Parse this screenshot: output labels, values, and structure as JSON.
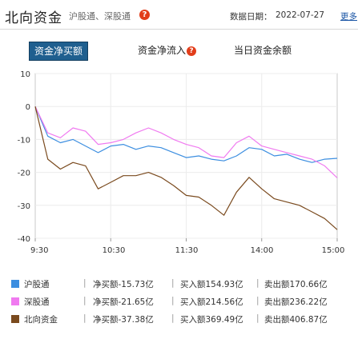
{
  "header": {
    "title": "北向资金",
    "subtitle": "沪股通、深股通",
    "date_label": "数据日期：",
    "date": "2022-07-27",
    "more": "更多"
  },
  "tabs": [
    {
      "label": "资金净买额",
      "active": true
    },
    {
      "label": "资金净流入",
      "active": false
    },
    {
      "label": "当日资金余额",
      "active": false
    }
  ],
  "colors": {
    "shanghai": "#3c8ee0",
    "shenzhen": "#f07af0",
    "northbound": "#7a4a1e",
    "tab_active": "#1f5f8f"
  },
  "chart_data": {
    "type": "line",
    "x_ticks": [
      "9:30",
      "10:30",
      "11:30",
      "14:00",
      "15:00"
    ],
    "y_ticks": [
      10,
      0,
      -10,
      -20,
      -30,
      -40
    ],
    "ylim": [
      -40,
      10
    ],
    "grid": true,
    "series": [
      {
        "name": "沪股通",
        "x": [
          "9:30",
          "9:40",
          "9:50",
          "10:00",
          "10:10",
          "10:20",
          "10:30",
          "10:40",
          "10:50",
          "11:00",
          "11:10",
          "11:20",
          "11:30",
          "13:10",
          "13:20",
          "13:30",
          "13:40",
          "13:50",
          "14:00",
          "14:10",
          "14:20",
          "14:30",
          "14:40",
          "14:50",
          "15:00"
        ],
        "values": [
          0,
          -9,
          -11,
          -10,
          -12,
          -14,
          -12,
          -11.5,
          -13,
          -12,
          -12.5,
          -14,
          -15.5,
          -15,
          -16,
          -16.5,
          -15,
          -12.5,
          -13,
          -15,
          -14.5,
          -16,
          -17,
          -16,
          -15.73
        ]
      },
      {
        "name": "深股通",
        "x": [
          "9:30",
          "9:40",
          "9:50",
          "10:00",
          "10:10",
          "10:20",
          "10:30",
          "10:40",
          "10:50",
          "11:00",
          "11:10",
          "11:20",
          "11:30",
          "13:10",
          "13:20",
          "13:30",
          "13:40",
          "13:50",
          "14:00",
          "14:10",
          "14:20",
          "14:30",
          "14:40",
          "14:50",
          "15:00"
        ],
        "values": [
          0,
          -8,
          -9.5,
          -6.5,
          -7.5,
          -11.5,
          -11,
          -10,
          -8,
          -6.5,
          -8,
          -10,
          -11.5,
          -12.5,
          -15,
          -15.5,
          -11,
          -9,
          -12,
          -13,
          -14,
          -15,
          -16,
          -18,
          -21.65
        ]
      },
      {
        "name": "北向资金",
        "x": [
          "9:30",
          "9:40",
          "9:50",
          "10:00",
          "10:10",
          "10:20",
          "10:30",
          "10:40",
          "10:50",
          "11:00",
          "11:10",
          "11:20",
          "11:30",
          "13:10",
          "13:20",
          "13:30",
          "13:40",
          "13:50",
          "14:00",
          "14:10",
          "14:20",
          "14:30",
          "14:40",
          "14:50",
          "15:00"
        ],
        "values": [
          0,
          -16,
          -19,
          -17,
          -18,
          -25,
          -23,
          -21,
          -21,
          -20,
          -21.5,
          -24,
          -27,
          -27.5,
          -30,
          -33,
          -26,
          -21.5,
          -25,
          -28,
          -29,
          -30,
          -32,
          -34,
          -37.38
        ]
      }
    ]
  },
  "legend": [
    {
      "name": "沪股通",
      "net": "净买额-15.73亿",
      "buy": "买入额154.93亿",
      "sell": "卖出额170.66亿"
    },
    {
      "name": "深股通",
      "net": "净买额-21.65亿",
      "buy": "买入额214.56亿",
      "sell": "卖出额236.22亿"
    },
    {
      "name": "北向资金",
      "net": "净买额-37.38亿",
      "buy": "买入额369.49亿",
      "sell": "卖出额406.87亿"
    }
  ]
}
